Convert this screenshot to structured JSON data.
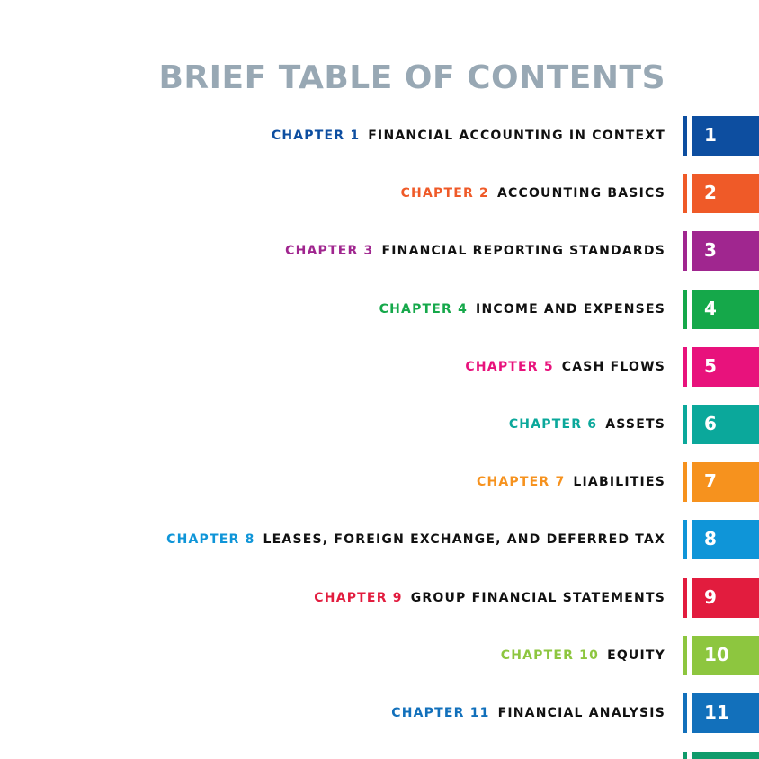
{
  "header": {
    "title": "BRIEF TABLE OF CONTENTS"
  },
  "chapters": [
    {
      "label": "CHAPTER 1",
      "title": "FINANCIAL ACCOUNTING IN CONTEXT",
      "number": "1",
      "color": "#0d4ea0"
    },
    {
      "label": "CHAPTER 2",
      "title": "ACCOUNTING BASICS",
      "number": "2",
      "color": "#ef5a28"
    },
    {
      "label": "CHAPTER 3",
      "title": "FINANCIAL REPORTING STANDARDS",
      "number": "3",
      "color": "#a0268f"
    },
    {
      "label": "CHAPTER 4",
      "title": "INCOME AND EXPENSES",
      "number": "4",
      "color": "#15a84a"
    },
    {
      "label": "CHAPTER 5",
      "title": "CASH FLOWS",
      "number": "5",
      "color": "#e8127c"
    },
    {
      "label": "CHAPTER 6",
      "title": "ASSETS",
      "number": "6",
      "color": "#0ba89b"
    },
    {
      "label": "CHAPTER 7",
      "title": "LIABILITIES",
      "number": "7",
      "color": "#f6921e"
    },
    {
      "label": "CHAPTER 8",
      "title": "LEASES, FOREIGN EXCHANGE, AND DEFERRED TAX",
      "number": "8",
      "color": "#0f95d8"
    },
    {
      "label": "CHAPTER 9",
      "title": "GROUP FINANCIAL STATEMENTS",
      "number": "9",
      "color": "#e21c3e"
    },
    {
      "label": "CHAPTER 10",
      "title": "EQUITY",
      "number": "10",
      "color": "#8dc63f"
    },
    {
      "label": "CHAPTER 11",
      "title": "FINANCIAL ANALYSIS",
      "number": "11",
      "color": "#1270bb"
    }
  ]
}
